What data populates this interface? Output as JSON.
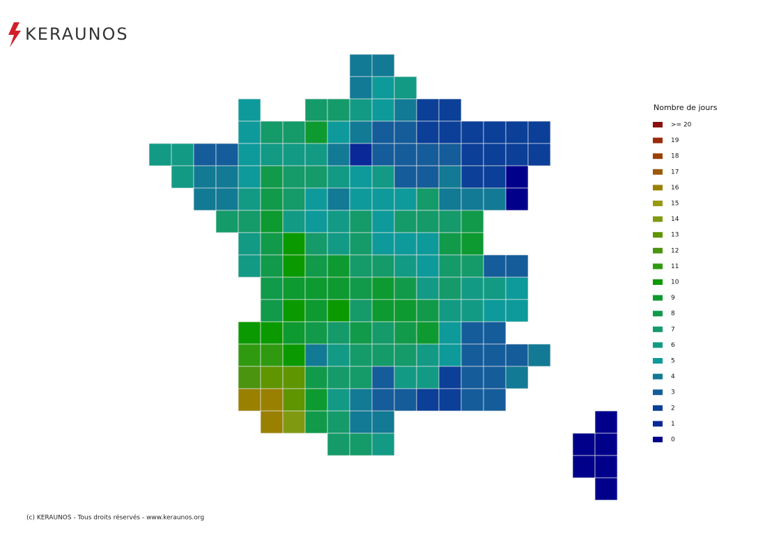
{
  "header": {
    "logo": "KERAUNOS"
  },
  "legend": {
    "title": "Nombre de jours",
    "items": [
      {
        "value": 20,
        "label": ">= 20",
        "color": "#8b0f0f"
      },
      {
        "value": 19,
        "color": "#9a2a0a"
      },
      {
        "value": 18,
        "color": "#9a4005"
      },
      {
        "value": 17,
        "color": "#9a5a08"
      },
      {
        "value": 16,
        "color": "#9a8000"
      },
      {
        "value": 15,
        "color": "#9a9a10"
      },
      {
        "value": 14,
        "color": "#7f9a10"
      },
      {
        "value": 13,
        "color": "#5f9500"
      },
      {
        "value": 12,
        "color": "#4a9410"
      },
      {
        "value": 11,
        "color": "#2f9a10"
      },
      {
        "value": 10,
        "color": "#0a9a00"
      },
      {
        "value": 9,
        "color": "#0d9a30"
      },
      {
        "value": 8,
        "color": "#119a4a"
      },
      {
        "value": 7,
        "color": "#159a6a"
      },
      {
        "value": 6,
        "color": "#129a85"
      },
      {
        "value": 5,
        "color": "#0e9a9a"
      },
      {
        "value": 4,
        "color": "#127a94"
      },
      {
        "value": 3,
        "color": "#155c9a"
      },
      {
        "value": 2,
        "color": "#0b3f98"
      },
      {
        "value": 1,
        "color": "#0a2898"
      },
      {
        "value": 0,
        "color": "#00008b"
      }
    ]
  },
  "map": {
    "grid": [
      [
        null,
        null,
        null,
        null,
        null,
        null,
        null,
        null,
        null,
        4,
        4,
        null,
        null,
        null,
        null,
        null,
        null,
        null,
        null,
        null,
        null
      ],
      [
        null,
        null,
        null,
        null,
        null,
        null,
        null,
        null,
        null,
        4,
        5,
        6,
        null,
        null,
        null,
        null,
        null,
        null,
        null,
        null,
        null
      ],
      [
        null,
        null,
        null,
        null,
        5,
        null,
        null,
        7,
        7,
        6,
        5,
        4,
        2,
        2,
        null,
        null,
        null,
        null,
        null,
        null,
        null
      ],
      [
        null,
        null,
        null,
        null,
        5,
        7,
        7,
        9,
        5,
        4,
        3,
        3,
        2,
        2,
        2,
        2,
        2,
        2,
        null,
        null,
        null
      ],
      [
        6,
        6,
        3,
        3,
        5,
        6,
        6,
        6,
        4,
        1,
        3,
        3,
        3,
        3,
        2,
        2,
        2,
        2,
        null,
        null,
        null
      ],
      [
        null,
        6,
        4,
        4,
        5,
        8,
        7,
        7,
        6,
        5,
        6,
        3,
        3,
        4,
        2,
        2,
        0,
        null,
        null,
        null,
        null
      ],
      [
        null,
        null,
        4,
        4,
        6,
        8,
        7,
        5,
        4,
        5,
        5,
        5,
        7,
        4,
        4,
        4,
        0,
        null,
        null,
        null,
        null
      ],
      [
        null,
        null,
        null,
        7,
        7,
        9,
        6,
        5,
        6,
        7,
        5,
        7,
        7,
        7,
        8,
        null,
        null,
        null,
        null,
        null,
        null
      ],
      [
        null,
        null,
        null,
        null,
        6,
        8,
        10,
        7,
        6,
        7,
        5,
        5,
        5,
        8,
        9,
        null,
        null,
        null,
        null,
        null,
        null
      ],
      [
        null,
        null,
        null,
        null,
        6,
        8,
        10,
        8,
        9,
        7,
        7,
        6,
        5,
        7,
        7,
        3,
        3,
        null,
        null,
        null,
        null
      ],
      [
        null,
        null,
        null,
        null,
        null,
        8,
        9,
        9,
        9,
        8,
        9,
        8,
        6,
        7,
        6,
        6,
        5,
        null,
        null,
        null,
        null
      ],
      [
        null,
        null,
        null,
        null,
        null,
        8,
        10,
        9,
        10,
        7,
        9,
        9,
        8,
        6,
        6,
        5,
        5,
        null,
        null,
        null,
        null
      ],
      [
        null,
        null,
        null,
        null,
        10,
        10,
        9,
        8,
        7,
        8,
        7,
        8,
        9,
        5,
        3,
        3,
        null,
        null,
        null,
        null,
        null
      ],
      [
        null,
        null,
        null,
        null,
        11,
        11,
        10,
        4,
        6,
        7,
        7,
        7,
        6,
        5,
        3,
        3,
        3,
        4,
        null,
        null,
        null
      ],
      [
        null,
        null,
        null,
        null,
        12,
        13,
        13,
        8,
        7,
        7,
        3,
        6,
        6,
        2,
        3,
        3,
        4,
        null,
        null,
        null,
        null
      ],
      [
        null,
        null,
        null,
        null,
        16,
        16,
        13,
        9,
        6,
        4,
        3,
        3,
        2,
        2,
        3,
        3,
        null,
        null,
        null,
        null,
        null
      ],
      [
        null,
        null,
        null,
        null,
        null,
        16,
        14,
        8,
        7,
        4,
        4,
        null,
        null,
        null,
        null,
        null,
        null,
        null,
        null,
        null,
        0
      ],
      [
        null,
        null,
        null,
        null,
        null,
        null,
        null,
        null,
        7,
        7,
        6,
        null,
        null,
        null,
        null,
        null,
        null,
        null,
        null,
        0,
        0
      ],
      [
        null,
        null,
        null,
        null,
        null,
        null,
        null,
        null,
        null,
        null,
        null,
        null,
        null,
        null,
        null,
        null,
        null,
        null,
        null,
        0,
        0
      ],
      [
        null,
        null,
        null,
        null,
        null,
        null,
        null,
        null,
        null,
        null,
        null,
        null,
        null,
        null,
        null,
        null,
        null,
        null,
        null,
        null,
        0
      ]
    ]
  },
  "footer": {
    "text": "(c) KERAUNOS - Tous droits réservés - www.keraunos.org"
  }
}
